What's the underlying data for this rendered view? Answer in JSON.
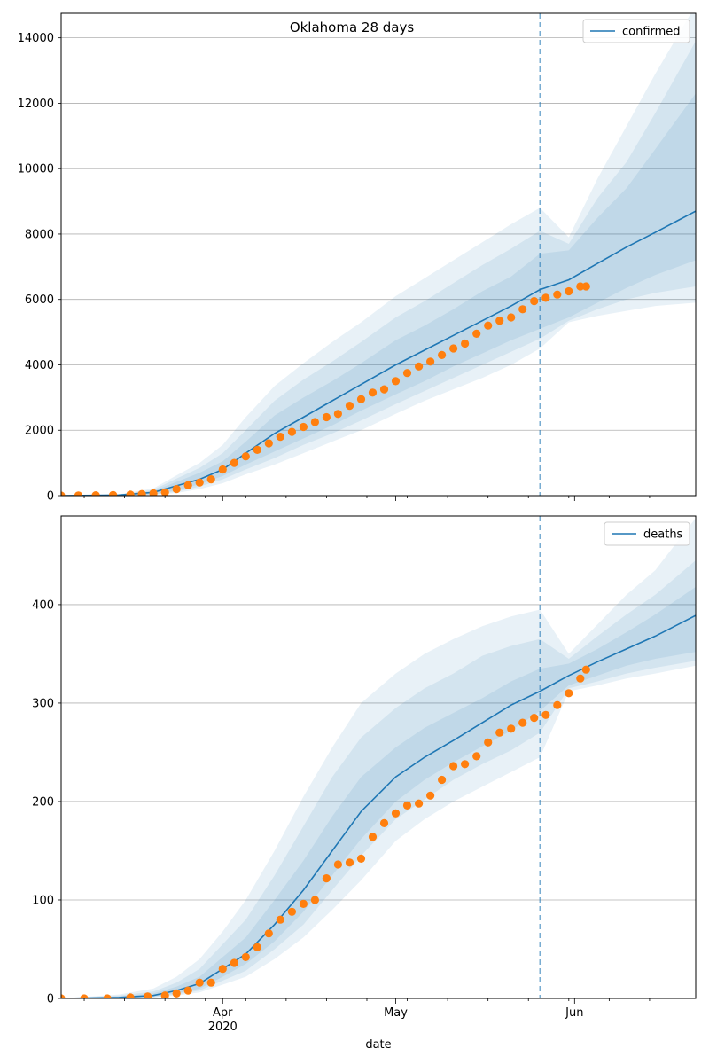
{
  "figure": {
    "title": "Oklahoma 28 days",
    "xlabel": "date"
  },
  "x_axis": {
    "month_ticks": [
      {
        "date": "2020-04-01",
        "label": "Apr",
        "sublabel": "2020"
      },
      {
        "date": "2020-05-01",
        "label": "May",
        "sublabel": ""
      },
      {
        "date": "2020-06-01",
        "label": "Jun",
        "sublabel": ""
      }
    ],
    "minor_tick_dates": [
      "2020-03-08",
      "2020-03-15",
      "2020-03-22",
      "2020-03-29",
      "2020-04-05",
      "2020-04-12",
      "2020-04-19",
      "2020-04-26",
      "2020-05-03",
      "2020-05-10",
      "2020-05-17",
      "2020-05-24",
      "2020-05-31",
      "2020-06-07",
      "2020-06-14",
      "2020-06-21"
    ],
    "start_date": "2020-03-04",
    "end_date": "2020-06-22"
  },
  "colors": {
    "model_line": "#1f77b4",
    "observed_points": "#ff7f0e",
    "band": "#1f77b4",
    "cutoff_line": "#1f77b4",
    "grid": "#b0b0b0"
  },
  "chart_data": [
    {
      "type": "line",
      "title": "Oklahoma 28 days",
      "xlabel": "",
      "ylabel": "",
      "legend": {
        "label": "confirmed",
        "position": "top-right"
      },
      "ylim": [
        0,
        14750
      ],
      "yticks": [
        0,
        2000,
        4000,
        6000,
        8000,
        10000,
        12000,
        14000
      ],
      "grid": "horizontal",
      "cutoff_date": "2020-05-26",
      "model_series": {
        "name": "confirmed",
        "x": [
          "2020-03-04",
          "2020-03-14",
          "2020-03-20",
          "2020-03-24",
          "2020-03-28",
          "2020-04-01",
          "2020-04-05",
          "2020-04-10",
          "2020-04-15",
          "2020-04-20",
          "2020-04-25",
          "2020-05-01",
          "2020-05-06",
          "2020-05-11",
          "2020-05-16",
          "2020-05-21",
          "2020-05-26",
          "2020-05-31",
          "2020-06-05",
          "2020-06-10",
          "2020-06-15",
          "2020-06-22"
        ],
        "y": [
          0,
          20,
          100,
          300,
          500,
          800,
          1300,
          1900,
          2400,
          2900,
          3400,
          4000,
          4450,
          4900,
          5350,
          5800,
          6300,
          6600,
          7100,
          7600,
          8050,
          8700
        ],
        "bands": [
          {
            "lower": [
              0,
              0,
              40,
              160,
              350,
              600,
              950,
              1350,
              1750,
              2150,
              2600,
              3100,
              3500,
              3950,
              4350,
              4750,
              5100,
              5450,
              5900,
              6350,
              6750,
              7200
            ],
            "upper": [
              0,
              30,
              140,
              420,
              700,
              1050,
              1650,
              2450,
              3000,
              3500,
              4050,
              4750,
              5200,
              5700,
              6250,
              6700,
              7400,
              7500,
              8500,
              9400,
              10600,
              12300
            ]
          },
          {
            "lower": [
              0,
              0,
              30,
              120,
              280,
              500,
              800,
              1150,
              1550,
              1900,
              2300,
              2800,
              3200,
              3600,
              4000,
              4400,
              4800,
              5350,
              5700,
              6000,
              6200,
              6400
            ],
            "upper": [
              0,
              30,
              180,
              520,
              850,
              1300,
              2000,
              2900,
              3550,
              4100,
              4700,
              5450,
              5950,
              6500,
              7050,
              7550,
              8100,
              7700,
              9100,
              10200,
              11700,
              13900
            ]
          },
          {
            "lower": [
              0,
              0,
              20,
              80,
              200,
              380,
              650,
              950,
              1300,
              1650,
              2000,
              2500,
              2900,
              3250,
              3600,
              4000,
              4500,
              5300,
              5500,
              5650,
              5800,
              5900
            ],
            "upper": [
              0,
              40,
              220,
              620,
              1000,
              1550,
              2400,
              3350,
              4050,
              4700,
              5300,
              6100,
              6650,
              7200,
              7750,
              8300,
              8800,
              7900,
              9700,
              11300,
              12900,
              15000
            ]
          }
        ]
      },
      "observed": {
        "name": "",
        "x": [
          "2020-03-04",
          "2020-03-07",
          "2020-03-10",
          "2020-03-13",
          "2020-03-16",
          "2020-03-18",
          "2020-03-20",
          "2020-03-22",
          "2020-03-24",
          "2020-03-26",
          "2020-03-28",
          "2020-03-30",
          "2020-04-01",
          "2020-04-03",
          "2020-04-05",
          "2020-04-07",
          "2020-04-09",
          "2020-04-11",
          "2020-04-13",
          "2020-04-15",
          "2020-04-17",
          "2020-04-19",
          "2020-04-21",
          "2020-04-23",
          "2020-04-25",
          "2020-04-27",
          "2020-04-29",
          "2020-05-01",
          "2020-05-03",
          "2020-05-05",
          "2020-05-07",
          "2020-05-09",
          "2020-05-11",
          "2020-05-13",
          "2020-05-15",
          "2020-05-17",
          "2020-05-19",
          "2020-05-21",
          "2020-05-23",
          "2020-05-25",
          "2020-05-27",
          "2020-05-29",
          "2020-05-31",
          "2020-06-02",
          "2020-06-03"
        ],
        "y": [
          0,
          5,
          10,
          20,
          30,
          50,
          70,
          100,
          200,
          320,
          400,
          500,
          800,
          1000,
          1200,
          1400,
          1600,
          1800,
          1950,
          2100,
          2250,
          2400,
          2500,
          2750,
          2950,
          3150,
          3250,
          3500,
          3750,
          3950,
          4100,
          4300,
          4500,
          4650,
          4950,
          5200,
          5350,
          5450,
          5700,
          5950,
          6050,
          6150,
          6250,
          6400,
          6400
        ]
      }
    },
    {
      "type": "line",
      "title": "",
      "xlabel": "date",
      "ylabel": "",
      "legend": {
        "label": "deaths",
        "position": "top-right"
      },
      "ylim": [
        0,
        490
      ],
      "yticks": [
        0,
        100,
        200,
        300,
        400
      ],
      "grid": "horizontal",
      "cutoff_date": "2020-05-26",
      "model_series": {
        "name": "deaths",
        "x": [
          "2020-03-04",
          "2020-03-14",
          "2020-03-20",
          "2020-03-24",
          "2020-03-28",
          "2020-04-01",
          "2020-04-05",
          "2020-04-10",
          "2020-04-15",
          "2020-04-20",
          "2020-04-25",
          "2020-05-01",
          "2020-05-06",
          "2020-05-11",
          "2020-05-16",
          "2020-05-21",
          "2020-05-26",
          "2020-05-31",
          "2020-06-05",
          "2020-06-10",
          "2020-06-15",
          "2020-06-22"
        ],
        "y": [
          0,
          1,
          3,
          8,
          15,
          30,
          45,
          75,
          110,
          150,
          190,
          225,
          245,
          262,
          280,
          298,
          312,
          328,
          342,
          355,
          368,
          389
        ],
        "bands": [
          {
            "lower": [
              0,
              0,
              2,
              5,
              10,
              22,
              35,
              58,
              88,
              125,
              162,
              200,
              222,
              240,
              256,
              272,
              292,
              318,
              328,
              338,
              345,
              352
            ],
            "upper": [
              0,
              2,
              5,
              12,
              22,
              42,
              62,
              100,
              140,
              185,
              225,
              255,
              275,
              290,
              305,
              322,
              335,
              340,
              355,
              372,
              390,
              418
            ]
          },
          {
            "lower": [
              0,
              0,
              1,
              4,
              8,
              18,
              28,
              50,
              75,
              110,
              145,
              182,
              202,
              222,
              238,
              252,
              270,
              315,
              322,
              330,
              336,
              343
            ],
            "upper": [
              0,
              3,
              7,
              16,
              30,
              55,
              80,
              125,
              175,
              225,
              265,
              295,
              315,
              330,
              348,
              358,
              365,
              345,
              368,
              390,
              410,
              445
            ]
          },
          {
            "lower": [
              0,
              0,
              1,
              3,
              6,
              14,
              22,
              40,
              62,
              90,
              120,
              160,
              182,
              200,
              215,
              230,
              245,
              312,
              318,
              325,
              330,
              338
            ],
            "upper": [
              0,
              4,
              10,
              22,
              40,
              68,
              100,
              150,
              205,
              255,
              300,
              330,
              350,
              365,
              378,
              388,
              395,
              350,
              380,
              410,
              435,
              488
            ]
          }
        ]
      },
      "observed": {
        "name": "",
        "x": [
          "2020-03-04",
          "2020-03-08",
          "2020-03-12",
          "2020-03-16",
          "2020-03-19",
          "2020-03-22",
          "2020-03-24",
          "2020-03-26",
          "2020-03-28",
          "2020-03-30",
          "2020-04-01",
          "2020-04-03",
          "2020-04-05",
          "2020-04-07",
          "2020-04-09",
          "2020-04-11",
          "2020-04-13",
          "2020-04-15",
          "2020-04-17",
          "2020-04-19",
          "2020-04-21",
          "2020-04-23",
          "2020-04-25",
          "2020-04-27",
          "2020-04-29",
          "2020-05-01",
          "2020-05-03",
          "2020-05-05",
          "2020-05-07",
          "2020-05-09",
          "2020-05-11",
          "2020-05-13",
          "2020-05-15",
          "2020-05-17",
          "2020-05-19",
          "2020-05-21",
          "2020-05-23",
          "2020-05-25",
          "2020-05-27",
          "2020-05-29",
          "2020-05-31",
          "2020-06-02",
          "2020-06-03"
        ],
        "y": [
          0,
          0,
          0,
          1,
          2,
          3,
          5,
          8,
          16,
          16,
          30,
          36,
          42,
          52,
          66,
          80,
          88,
          96,
          100,
          122,
          136,
          138,
          142,
          164,
          178,
          188,
          196,
          198,
          206,
          222,
          236,
          238,
          246,
          260,
          270,
          274,
          280,
          285,
          288,
          298,
          310,
          325,
          334
        ]
      }
    }
  ]
}
